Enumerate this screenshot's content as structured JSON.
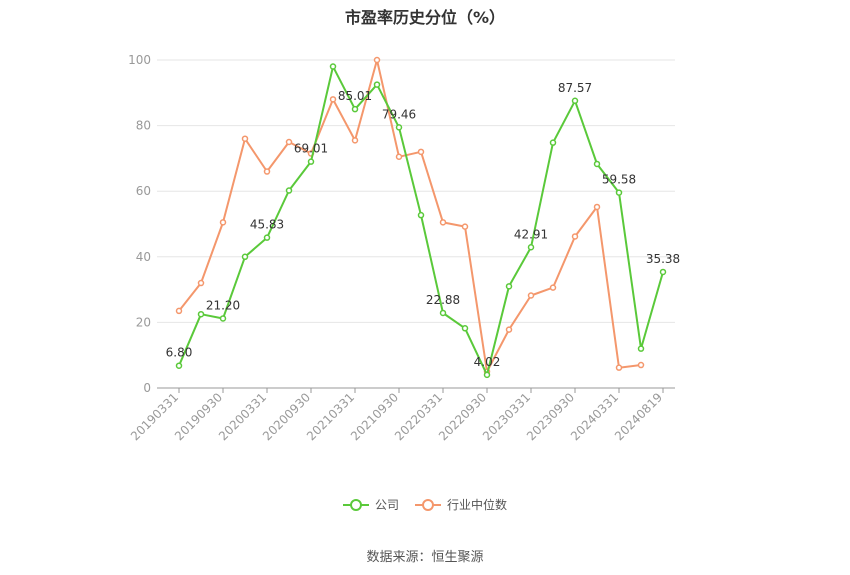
{
  "chart_data": {
    "type": "line",
    "title": "市盈率历史分位（%）",
    "x": [
      "20190331",
      "20190630",
      "20190930",
      "20191231",
      "20200331",
      "20200630",
      "20200930",
      "20201231",
      "20210331",
      "20210630",
      "20210930",
      "20211231",
      "20220331",
      "20220630",
      "20220930",
      "20221231",
      "20230331",
      "20230630",
      "20230930",
      "20231231",
      "20240331",
      "20240630",
      "20240819"
    ],
    "x_ticks": [
      "20190331",
      "20190930",
      "20200331",
      "20200930",
      "20210331",
      "20210930",
      "20220331",
      "20220930",
      "20230331",
      "20230930",
      "20240331",
      "20240819"
    ],
    "ylim": [
      0,
      100
    ],
    "y_ticks": [
      0,
      20,
      40,
      60,
      80,
      100
    ],
    "grid": true,
    "legend_position": "bottom",
    "series": [
      {
        "name": "公司",
        "color": "#5ac93a",
        "values": [
          6.8,
          22.5,
          21.2,
          40.0,
          45.83,
          60.2,
          69.01,
          98.0,
          85.01,
          92.5,
          79.46,
          52.7,
          22.88,
          18.2,
          4.02,
          31.0,
          42.91,
          74.8,
          87.57,
          68.3,
          59.58,
          12.0,
          35.38
        ],
        "labels": {
          "0": "6.80",
          "2": "21.20",
          "4": "45.83",
          "6": "69.01",
          "8": "85.01",
          "10": "79.46",
          "12": "22.88",
          "14": "4.02",
          "16": "42.91",
          "18": "87.57",
          "20": "59.58",
          "22": "35.38"
        }
      },
      {
        "name": "行业中位数",
        "color": "#f4976c",
        "values": [
          23.5,
          32.0,
          50.5,
          76.0,
          66.0,
          75.0,
          71.5,
          88.0,
          75.5,
          100.0,
          70.5,
          72.0,
          50.5,
          49.2,
          5.0,
          17.8,
          28.2,
          30.6,
          46.2,
          55.2,
          6.2,
          7.0,
          null
        ]
      }
    ]
  },
  "source": "数据来源：恒生聚源"
}
